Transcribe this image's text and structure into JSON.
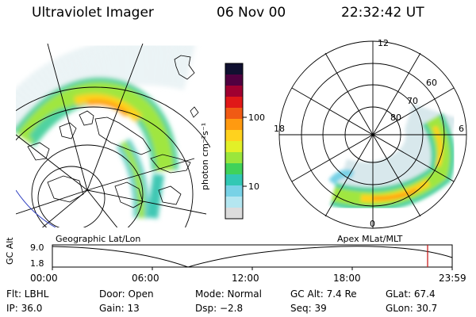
{
  "header": {
    "title": "Ultraviolet Imager",
    "date": "06 Nov 00",
    "time": "22:32:42 UT"
  },
  "colorbar": {
    "unit_label": "photon cm⁻²s⁻¹",
    "ticks": [
      "100",
      "10"
    ],
    "colors": [
      "#101030",
      "#500040",
      "#a00030",
      "#e01818",
      "#f05a14",
      "#ff9a10",
      "#ffd21e",
      "#e2f028",
      "#9ae63c",
      "#40d25a",
      "#32c8b4",
      "#78d2e6",
      "#b4e6f0",
      "#dcdcdc"
    ]
  },
  "geo_map": {
    "label": "Geographic Lat/Lon"
  },
  "apex_map": {
    "label": "Apex MLat/MLT",
    "mlt_labels": [
      "12",
      "18",
      "6",
      "0"
    ],
    "lat_labels": [
      "60",
      "70",
      "80"
    ]
  },
  "timeline": {
    "axis_label": "GC Alt",
    "y_ticks": [
      "9.0",
      "1.8"
    ],
    "x_ticks": [
      "00:00",
      "06:00",
      "12:00",
      "18:00",
      "23:59"
    ],
    "marker_time": "22:32:42",
    "marker_color": "#c81e1e"
  },
  "info": {
    "row1": {
      "flt": "Flt: LBHL",
      "door": "Door: Open",
      "mode": "Mode: Normal",
      "gcalt": "GC Alt: 7.4 Re",
      "glat": "GLat: 67.4"
    },
    "row2": {
      "ip": "IP: 36.0",
      "gain": "Gain: 13",
      "dsp": "Dsp:   −2.8",
      "seq": "Seq: 39",
      "glon": "GLon: 30.7"
    }
  }
}
